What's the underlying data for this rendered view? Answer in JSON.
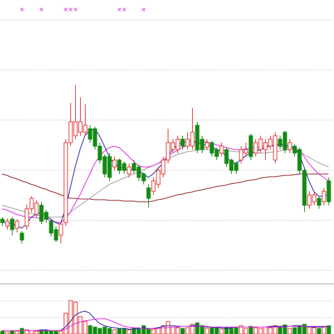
{
  "chart_data": {
    "type": "candlestick",
    "ylim": [
      0,
      400
    ],
    "grid_levels": [
      372,
      300,
      228,
      156,
      84,
      12
    ],
    "up_color": "#e03030",
    "down_color": "#138a13",
    "open": [
      85,
      75,
      85,
      72,
      65,
      75,
      100,
      92,
      105,
      95,
      82,
      70,
      62,
      80,
      195,
      205,
      210,
      210,
      215,
      215,
      190,
      175,
      175,
      160,
      170,
      165,
      150,
      165,
      160,
      150,
      130,
      125,
      135,
      150,
      170,
      185,
      185,
      200,
      190,
      190,
      220,
      200,
      188,
      195,
      185,
      180,
      185,
      170,
      165,
      170,
      180,
      205,
      180,
      185,
      185,
      190,
      170,
      200,
      210,
      185,
      190,
      185,
      155,
      105,
      110,
      115,
      110,
      140
    ],
    "high": [
      88,
      86,
      88,
      85,
      68,
      106,
      118,
      112,
      110,
      98,
      86,
      75,
      82,
      200,
      252,
      278,
      260,
      250,
      220,
      218,
      195,
      178,
      180,
      175,
      172,
      168,
      165,
      170,
      163,
      152,
      135,
      145,
      160,
      175,
      215,
      200,
      205,
      205,
      210,
      245,
      225,
      205,
      200,
      198,
      188,
      195,
      188,
      172,
      168,
      190,
      195,
      208,
      200,
      205,
      200,
      205,
      210,
      205,
      212,
      200,
      193,
      188,
      158,
      125,
      125,
      118,
      130,
      145
    ],
    "low": [
      75,
      70,
      62,
      66,
      50,
      70,
      95,
      88,
      78,
      80,
      60,
      52,
      50,
      75,
      190,
      200,
      205,
      205,
      195,
      185,
      165,
      145,
      140,
      155,
      150,
      150,
      145,
      150,
      140,
      135,
      102,
      120,
      130,
      145,
      165,
      180,
      180,
      185,
      185,
      185,
      180,
      180,
      185,
      175,
      170,
      175,
      160,
      150,
      150,
      165,
      175,
      170,
      175,
      180,
      170,
      185,
      165,
      185,
      180,
      180,
      175,
      150,
      95,
      100,
      105,
      100,
      105,
      105
    ],
    "close": [
      80,
      82,
      70,
      82,
      55,
      100,
      115,
      108,
      82,
      85,
      65,
      55,
      78,
      195,
      225,
      225,
      225,
      220,
      200,
      190,
      170,
      150,
      145,
      170,
      155,
      155,
      160,
      155,
      145,
      140,
      115,
      140,
      155,
      170,
      195,
      195,
      200,
      190,
      200,
      210,
      185,
      185,
      195,
      180,
      175,
      190,
      165,
      155,
      155,
      185,
      185,
      175,
      195,
      200,
      195,
      200,
      205,
      190,
      185,
      195,
      180,
      155,
      105,
      120,
      120,
      105,
      125,
      110
    ],
    "moving_averages": [
      {
        "color": "#8b1a1a",
        "values": [
          150,
          148,
          145,
          143,
          140,
          138,
          135,
          133,
          130,
          128,
          125,
          123,
          120,
          118,
          115,
          115,
          114,
          114,
          114,
          113,
          113,
          113,
          112,
          112,
          112,
          111,
          111,
          111,
          110,
          110,
          110,
          111,
          113,
          114,
          116,
          118,
          120,
          121,
          123,
          124,
          126,
          127,
          129,
          130,
          132,
          133,
          134,
          136,
          137,
          138,
          140,
          141,
          142,
          144,
          145,
          146,
          146,
          147,
          148,
          148,
          149,
          150,
          150,
          150,
          150,
          150,
          150,
          150
        ]
      },
      {
        "color": "#9a9a9a",
        "values": [
          105,
          103,
          101,
          99,
          97,
          95,
          93,
          91,
          90,
          89,
          88,
          88,
          88,
          90,
          95,
          100,
          105,
          110,
          115,
          120,
          125,
          130,
          135,
          138,
          141,
          144,
          147,
          150,
          153,
          156,
          159,
          162,
          165,
          168,
          172,
          175,
          178,
          180,
          182,
          183,
          184,
          185,
          185,
          185,
          184,
          184,
          183,
          183,
          182,
          182,
          181,
          181,
          180,
          180,
          180,
          181,
          182,
          183,
          184,
          185,
          185,
          182,
          178,
          174,
          170,
          166,
          163,
          160
        ]
      },
      {
        "color": "#e020e0",
        "values": [
          100,
          98,
          95,
          92,
          90,
          88,
          88,
          87,
          86,
          85,
          83,
          81,
          80,
          85,
          95,
          108,
          120,
          135,
          150,
          165,
          175,
          183,
          188,
          190,
          188,
          182,
          175,
          168,
          162,
          160,
          160,
          162,
          165,
          170,
          175,
          180,
          184,
          188,
          191,
          194,
          196,
          197,
          196,
          194,
          192,
          190,
          188,
          186,
          185,
          185,
          186,
          187,
          188,
          189,
          190,
          190,
          190,
          190,
          189,
          188,
          187,
          185,
          175,
          165,
          157,
          150,
          145,
          140
        ]
      },
      {
        "color": "#1a1aa0",
        "values": [
          80,
          80,
          78,
          76,
          72,
          78,
          88,
          92,
          95,
          90,
          85,
          80,
          78,
          100,
          130,
          160,
          185,
          205,
          212,
          215,
          205,
          190,
          175,
          165,
          160,
          158,
          155,
          157,
          155,
          150,
          145,
          150,
          158,
          165,
          175,
          185,
          192,
          195,
          196,
          198,
          195,
          193,
          192,
          190,
          185,
          183,
          175,
          168,
          165,
          170,
          176,
          180,
          182,
          185,
          188,
          190,
          192,
          193,
          192,
          190,
          188,
          178,
          160,
          140,
          125,
          118,
          118,
          120
        ]
      }
    ],
    "volume": {
      "ylim": [
        0,
        70
      ],
      "grid_levels": [
        48,
        24
      ],
      "values": [
        4,
        3,
        5,
        4,
        8,
        6,
        5,
        4,
        6,
        5,
        4,
        5,
        4,
        30,
        48,
        46,
        25,
        18,
        12,
        10,
        8,
        10,
        8,
        6,
        7,
        8,
        6,
        9,
        7,
        12,
        8,
        7,
        9,
        12,
        18,
        10,
        9,
        8,
        9,
        14,
        16,
        12,
        8,
        10,
        9,
        7,
        10,
        8,
        9,
        12,
        8,
        11,
        9,
        8,
        10,
        9,
        12,
        10,
        13,
        8,
        9,
        12,
        14,
        10,
        9,
        8,
        10,
        12
      ],
      "moving_averages": [
        {
          "color": "#1a1aa0",
          "values": [
            5,
            5,
            5,
            5,
            5,
            5,
            5,
            5,
            6,
            6,
            5,
            5,
            5,
            10,
            18,
            27,
            31,
            33,
            30,
            22,
            15,
            12,
            10,
            9,
            8,
            8,
            7,
            7,
            8,
            9,
            8,
            8,
            9,
            11,
            12,
            12,
            11,
            11,
            11,
            12,
            12,
            11,
            10,
            10,
            9,
            9,
            8,
            9,
            10,
            10,
            10,
            10,
            10,
            10,
            10,
            11,
            11,
            11,
            11,
            11,
            12,
            12,
            11,
            10,
            10,
            10,
            10,
            11
          ]
        },
        {
          "color": "#e020e0",
          "values": [
            5,
            5,
            5,
            5,
            5,
            5,
            5,
            5,
            5,
            5,
            5,
            5,
            5,
            7,
            11,
            15,
            17,
            19,
            20,
            21,
            22,
            22,
            20,
            17,
            14,
            11,
            10,
            9,
            9,
            8,
            8,
            8,
            8,
            9,
            9,
            10,
            10,
            11,
            11,
            11,
            11,
            11,
            11,
            10,
            10,
            10,
            10,
            10,
            10,
            10,
            10,
            10,
            10,
            10,
            10,
            10,
            10,
            10,
            10,
            11,
            11,
            11,
            11,
            11,
            11,
            11,
            11,
            11
          ]
        }
      ]
    },
    "signals": {
      "text": "×",
      "color": "#d020d0",
      "at": [
        4,
        8,
        13,
        14,
        15,
        24,
        25,
        29
      ]
    }
  }
}
